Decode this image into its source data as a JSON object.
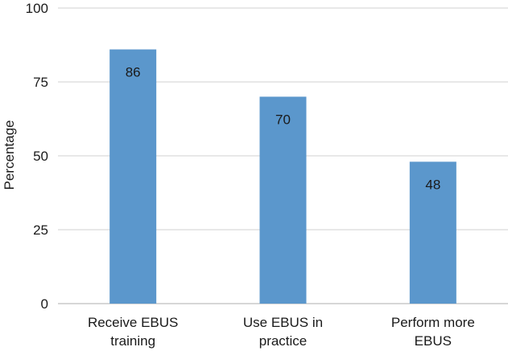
{
  "chart_data": {
    "type": "bar",
    "title": "",
    "xlabel": "",
    "ylabel": "Percentage",
    "ylim": [
      0,
      100
    ],
    "yticks": [
      0,
      25,
      50,
      75,
      100
    ],
    "grid": true,
    "categories": [
      [
        "Receive EBUS",
        "training"
      ],
      [
        "Use EBUS in",
        "practice"
      ],
      [
        "Perform more",
        "EBUS"
      ]
    ],
    "values": [
      86,
      70,
      48
    ],
    "data_labels": [
      "86",
      "70",
      "48"
    ],
    "bar_color": "#5b97cc"
  }
}
